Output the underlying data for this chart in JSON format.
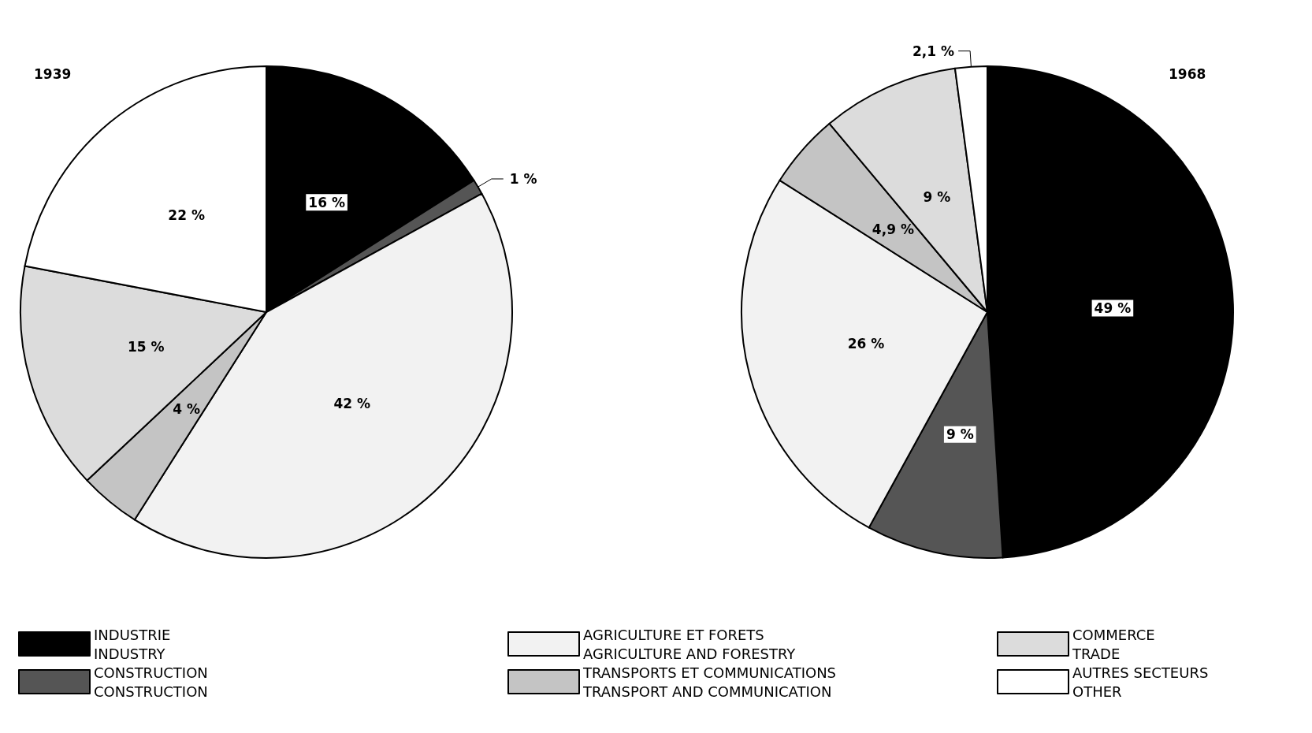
{
  "chart_data": {
    "type": "pie",
    "categories": [
      "INDUSTRIE\nINDUSTRY",
      "CONSTRUCTION\nCONSTRUCTION",
      "AGRICULTURE ET FORETS\nAGRICULTURE AND FORESTRY",
      "TRANSPORTS ET COMMUNICATIONS\nTRANSPORT AND COMMUNICATION",
      "COMMERCE\nTRADE",
      "AUTRES SECTEURS\nOTHER"
    ],
    "colors": [
      "#000000",
      "#555555",
      "#f2f2f2",
      "#c4c4c4",
      "#dcdcdc",
      "#ffffff"
    ],
    "legend": "bottom",
    "series": [
      {
        "name": "1939",
        "values": [
          16,
          1,
          42,
          4,
          15,
          22
        ],
        "value_labels": [
          "16 %",
          "1 %",
          "42 %",
          "4 %",
          "15 %",
          "22 %"
        ]
      },
      {
        "name": "1968",
        "values": [
          49,
          9,
          26,
          4.9,
          9,
          2.1
        ],
        "value_labels": [
          "49 %",
          "9 %",
          "26 %",
          "4,9 %",
          "9 %",
          "2,1 %"
        ]
      }
    ]
  }
}
